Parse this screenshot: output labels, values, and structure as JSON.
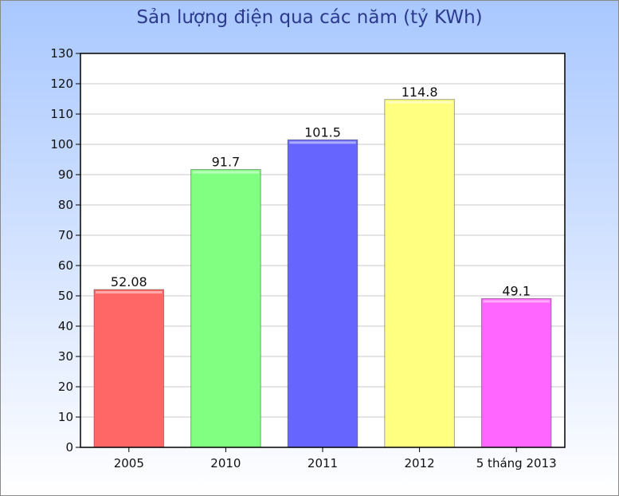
{
  "chart_data": {
    "type": "bar",
    "title": "Sản lượng điện qua các năm (tỷ KWh)",
    "categories": [
      "2005",
      "2010",
      "2011",
      "2012",
      "5 tháng 2013"
    ],
    "values": [
      52.08,
      91.7,
      101.5,
      114.8,
      49.1
    ],
    "value_labels": [
      "52.08",
      "91.7",
      "101.5",
      "114.8",
      "49.1"
    ],
    "bar_colors": [
      "#ff6666",
      "#80ff80",
      "#6666ff",
      "#ffff80",
      "#ff66ff"
    ],
    "ylim": [
      0,
      130
    ],
    "yticks": [
      0,
      10,
      20,
      30,
      40,
      50,
      60,
      70,
      80,
      90,
      100,
      110,
      120,
      130
    ],
    "grid": true,
    "legend": "none"
  }
}
